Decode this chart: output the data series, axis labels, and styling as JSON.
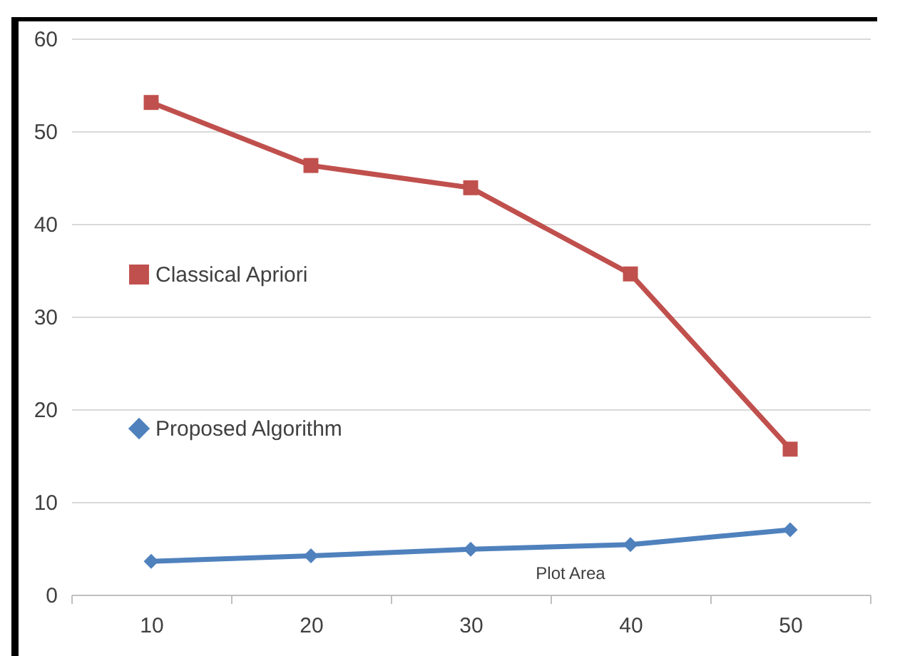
{
  "chart_data": {
    "type": "line",
    "categories": [
      "10",
      "20",
      "30",
      "40",
      "50"
    ],
    "series": [
      {
        "name": "Classical Apriori",
        "color": "#c0504d",
        "marker": "square",
        "values": [
          53.1,
          46.3,
          43.9,
          34.6,
          15.7
        ]
      },
      {
        "name": "Proposed Algorithm",
        "color": "#4f81bd",
        "marker": "diamond",
        "values": [
          3.6,
          4.2,
          4.9,
          5.4,
          7.0
        ]
      }
    ],
    "ylim": [
      0,
      60
    ],
    "yticks": [
      0,
      10,
      20,
      30,
      40,
      50,
      60
    ],
    "grid": "y",
    "legend": "left",
    "annotations": [
      "Plot Area"
    ]
  }
}
